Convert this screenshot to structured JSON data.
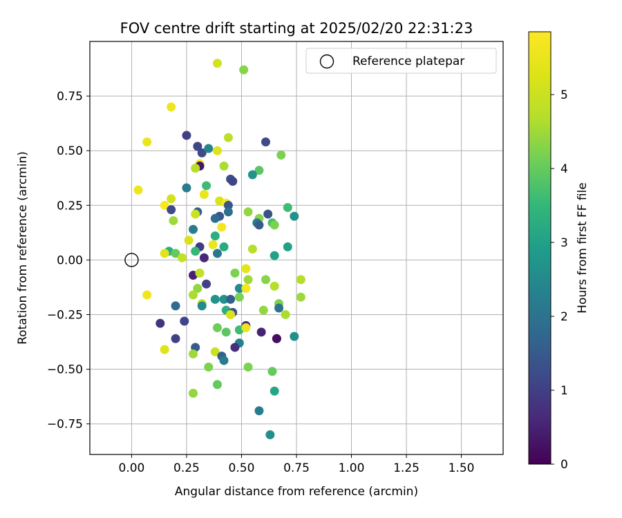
{
  "chart_data": {
    "type": "scatter",
    "title": "FOV centre drift starting at 2025/02/20 22:31:23",
    "xlabel": "Angular distance from reference (arcmin)",
    "ylabel": "Rotation from reference (arcmin)",
    "xlim": [
      -0.19,
      1.69
    ],
    "ylim": [
      -0.89,
      1.0
    ],
    "x_ticks": [
      0.0,
      0.25,
      0.5,
      0.75,
      1.0,
      1.25,
      1.5
    ],
    "x_tick_labels": [
      "0.00",
      "0.25",
      "0.50",
      "0.75",
      "1.00",
      "1.25",
      "1.50"
    ],
    "y_ticks": [
      -0.75,
      -0.5,
      -0.25,
      0.0,
      0.25,
      0.5,
      0.75
    ],
    "y_tick_labels": [
      "−0.75",
      "−0.50",
      "−0.25",
      "0.00",
      "0.25",
      "0.50",
      "0.75"
    ],
    "grid": true,
    "legend": {
      "position": "top-right",
      "entries": [
        {
          "label": "Reference platepar",
          "marker": "open-circle",
          "x": 0.0,
          "y": 0.0
        }
      ]
    },
    "colorbar": {
      "label": "Hours from first FF file",
      "colormap": "viridis",
      "range": [
        0,
        5.85
      ],
      "ticks": [
        0,
        1,
        2,
        3,
        4,
        5
      ],
      "tick_labels": [
        "0",
        "1",
        "2",
        "3",
        "4",
        "5"
      ]
    },
    "series": [
      {
        "points": [
          [
            0.39,
            0.9,
            5.1
          ],
          [
            0.51,
            0.87,
            4.3
          ],
          [
            0.18,
            0.7,
            5.6
          ],
          [
            0.07,
            0.54,
            5.5
          ],
          [
            0.25,
            0.57,
            1.0
          ],
          [
            0.44,
            0.56,
            4.8
          ],
          [
            0.3,
            0.52,
            1.1
          ],
          [
            0.32,
            0.49,
            1.2
          ],
          [
            0.35,
            0.51,
            2.4
          ],
          [
            0.39,
            0.5,
            5.3
          ],
          [
            0.61,
            0.54,
            1.2
          ],
          [
            0.68,
            0.48,
            4.2
          ],
          [
            0.31,
            0.44,
            5.7
          ],
          [
            0.31,
            0.43,
            0.3
          ],
          [
            0.29,
            0.42,
            4.7
          ],
          [
            0.42,
            0.43,
            4.6
          ],
          [
            0.58,
            0.41,
            3.9
          ],
          [
            0.55,
            0.39,
            2.7
          ],
          [
            0.45,
            0.37,
            1.3
          ],
          [
            0.46,
            0.36,
            1.1
          ],
          [
            0.03,
            0.32,
            5.6
          ],
          [
            0.25,
            0.33,
            2.2
          ],
          [
            0.34,
            0.34,
            3.6
          ],
          [
            0.33,
            0.3,
            5.5
          ],
          [
            0.18,
            0.28,
            5.1
          ],
          [
            0.4,
            0.27,
            5.2
          ],
          [
            0.43,
            0.26,
            5.8
          ],
          [
            0.44,
            0.25,
            1.4
          ],
          [
            0.15,
            0.25,
            5.8
          ],
          [
            0.18,
            0.23,
            1.2
          ],
          [
            0.3,
            0.22,
            1.6
          ],
          [
            0.44,
            0.22,
            1.9
          ],
          [
            0.53,
            0.22,
            4.4
          ],
          [
            0.62,
            0.21,
            1.3
          ],
          [
            0.71,
            0.24,
            3.6
          ],
          [
            0.29,
            0.21,
            5.0
          ],
          [
            0.4,
            0.2,
            1.4
          ],
          [
            0.38,
            0.19,
            1.9
          ],
          [
            0.58,
            0.19,
            4.3
          ],
          [
            0.74,
            0.2,
            2.7
          ],
          [
            0.19,
            0.18,
            4.5
          ],
          [
            0.57,
            0.17,
            2.3
          ],
          [
            0.58,
            0.16,
            1.5
          ],
          [
            0.64,
            0.17,
            3.7
          ],
          [
            0.65,
            0.16,
            4.2
          ],
          [
            0.41,
            0.15,
            5.7
          ],
          [
            0.28,
            0.14,
            2.2
          ],
          [
            0.38,
            0.11,
            3.3
          ],
          [
            0.26,
            0.09,
            5.2
          ],
          [
            0.37,
            0.07,
            5.5
          ],
          [
            0.31,
            0.06,
            0.9
          ],
          [
            0.42,
            0.06,
            3.2
          ],
          [
            0.55,
            0.05,
            4.7
          ],
          [
            0.71,
            0.06,
            3.0
          ],
          [
            0.17,
            0.04,
            3.3
          ],
          [
            0.29,
            0.04,
            3.5
          ],
          [
            0.15,
            0.03,
            5.3
          ],
          [
            0.2,
            0.03,
            4.0
          ],
          [
            0.39,
            0.03,
            2.1
          ],
          [
            0.65,
            0.02,
            3.0
          ],
          [
            0.23,
            0.01,
            4.9
          ],
          [
            0.33,
            0.01,
            0.6
          ],
          [
            0.52,
            -0.04,
            5.4
          ],
          [
            0.47,
            -0.06,
            4.2
          ],
          [
            0.28,
            -0.07,
            0.5
          ],
          [
            0.31,
            -0.06,
            4.9
          ],
          [
            0.53,
            -0.09,
            4.5
          ],
          [
            0.61,
            -0.09,
            4.3
          ],
          [
            0.77,
            -0.09,
            4.7
          ],
          [
            0.34,
            -0.11,
            1.0
          ],
          [
            0.65,
            -0.12,
            4.7
          ],
          [
            0.3,
            -0.13,
            4.4
          ],
          [
            0.49,
            -0.13,
            2.5
          ],
          [
            0.52,
            -0.13,
            5.7
          ],
          [
            0.07,
            -0.16,
            5.6
          ],
          [
            0.28,
            -0.16,
            4.6
          ],
          [
            0.49,
            -0.17,
            4.2
          ],
          [
            0.77,
            -0.17,
            4.5
          ],
          [
            0.38,
            -0.18,
            2.7
          ],
          [
            0.42,
            -0.18,
            2.7
          ],
          [
            0.45,
            -0.18,
            1.6
          ],
          [
            0.32,
            -0.2,
            4.8
          ],
          [
            0.32,
            -0.21,
            2.5
          ],
          [
            0.67,
            -0.2,
            4.2
          ],
          [
            0.2,
            -0.21,
            1.8
          ],
          [
            0.43,
            -0.23,
            3.3
          ],
          [
            0.46,
            -0.24,
            1.3
          ],
          [
            0.6,
            -0.23,
            4.4
          ],
          [
            0.67,
            -0.22,
            2.0
          ],
          [
            0.45,
            -0.25,
            5.2
          ],
          [
            0.7,
            -0.25,
            4.6
          ],
          [
            0.13,
            -0.29,
            0.8
          ],
          [
            0.24,
            -0.28,
            1.1
          ],
          [
            0.52,
            -0.3,
            0.6
          ],
          [
            0.39,
            -0.31,
            4.1
          ],
          [
            0.49,
            -0.32,
            3.6
          ],
          [
            0.52,
            -0.31,
            5.5
          ],
          [
            0.43,
            -0.33,
            3.9
          ],
          [
            0.59,
            -0.33,
            0.5
          ],
          [
            0.66,
            -0.36,
            0.3
          ],
          [
            0.66,
            -0.36,
            0.2
          ],
          [
            0.2,
            -0.36,
            1.0
          ],
          [
            0.49,
            -0.38,
            2.3
          ],
          [
            0.74,
            -0.35,
            2.6
          ],
          [
            0.29,
            -0.4,
            1.5
          ],
          [
            0.47,
            -0.4,
            0.7
          ],
          [
            0.15,
            -0.41,
            5.3
          ],
          [
            0.38,
            -0.42,
            5.0
          ],
          [
            0.28,
            -0.43,
            4.5
          ],
          [
            0.41,
            -0.44,
            1.6
          ],
          [
            0.42,
            -0.46,
            2.2
          ],
          [
            0.35,
            -0.49,
            4.2
          ],
          [
            0.53,
            -0.49,
            4.2
          ],
          [
            0.64,
            -0.51,
            4.0
          ],
          [
            0.39,
            -0.57,
            4.0
          ],
          [
            0.65,
            -0.6,
            3.1
          ],
          [
            0.28,
            -0.61,
            4.4
          ],
          [
            0.58,
            -0.69,
            2.2
          ],
          [
            0.63,
            -0.8,
            2.6
          ]
        ]
      }
    ]
  }
}
